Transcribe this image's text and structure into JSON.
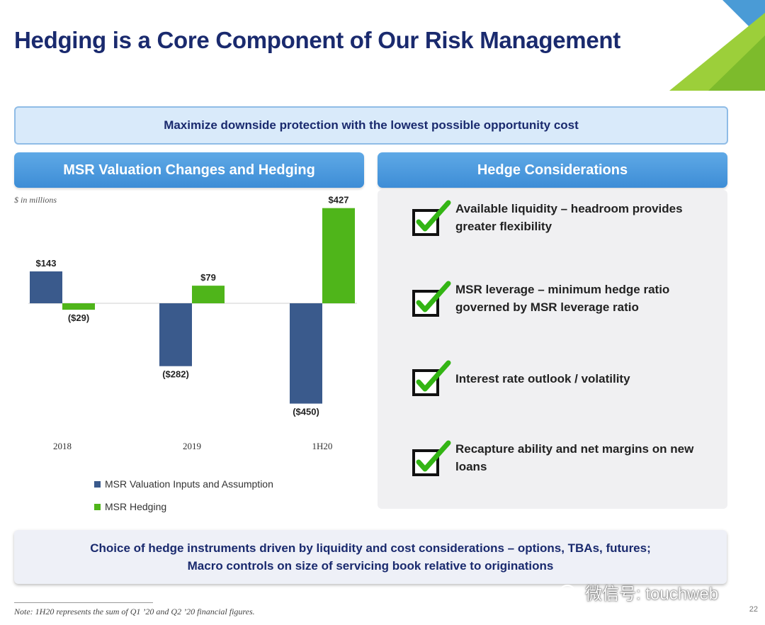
{
  "title": "Hedging is a Core Component of Our Risk Management",
  "banner": "Maximize downside protection with the lowest possible opportunity cost",
  "left_panel": {
    "header": "MSR Valuation Changes and Hedging",
    "units": "$ in millions"
  },
  "right_panel": {
    "header": "Hedge Considerations"
  },
  "considerations": [
    {
      "text": "Available liquidity – headroom provides greater flexibility"
    },
    {
      "text": "MSR leverage – minimum hedge ratio governed by MSR leverage ratio"
    },
    {
      "text": "Interest rate outlook / volatility"
    },
    {
      "text": "Recapture ability and net margins on new loans"
    }
  ],
  "bottom": {
    "line1": "Choice of hedge instruments driven by liquidity and cost considerations – options, TBAs, futures;",
    "line2": "Macro controls on size of servicing book relative to originations"
  },
  "note": "Note: 1H20 represents the sum of Q1 ’20 and Q2 ’20 financial figures.",
  "watermark": "微信号: touchweb",
  "page_number": "22",
  "colors": {
    "valuation": "#3a5a8c",
    "hedging": "#4fb51a",
    "title": "#1a2a6e",
    "header": "#4a9ade"
  },
  "icons": {
    "checkbox": "check-box-icon",
    "wechat": "wechat-icon"
  },
  "chart_data": {
    "type": "bar",
    "categories": [
      "2018",
      "2019",
      "1H20"
    ],
    "series": [
      {
        "name": "MSR Valuation Inputs and Assumption",
        "values": [
          143,
          -282,
          -450
        ],
        "labels": [
          "$143",
          "($282)",
          "($450)"
        ]
      },
      {
        "name": "MSR Hedging",
        "values": [
          -29,
          79,
          427
        ],
        "labels": [
          "($29)",
          "$79",
          "$427"
        ]
      }
    ],
    "ylim": [
      -450,
      427
    ],
    "grid": false,
    "legend": "bottom-left"
  }
}
